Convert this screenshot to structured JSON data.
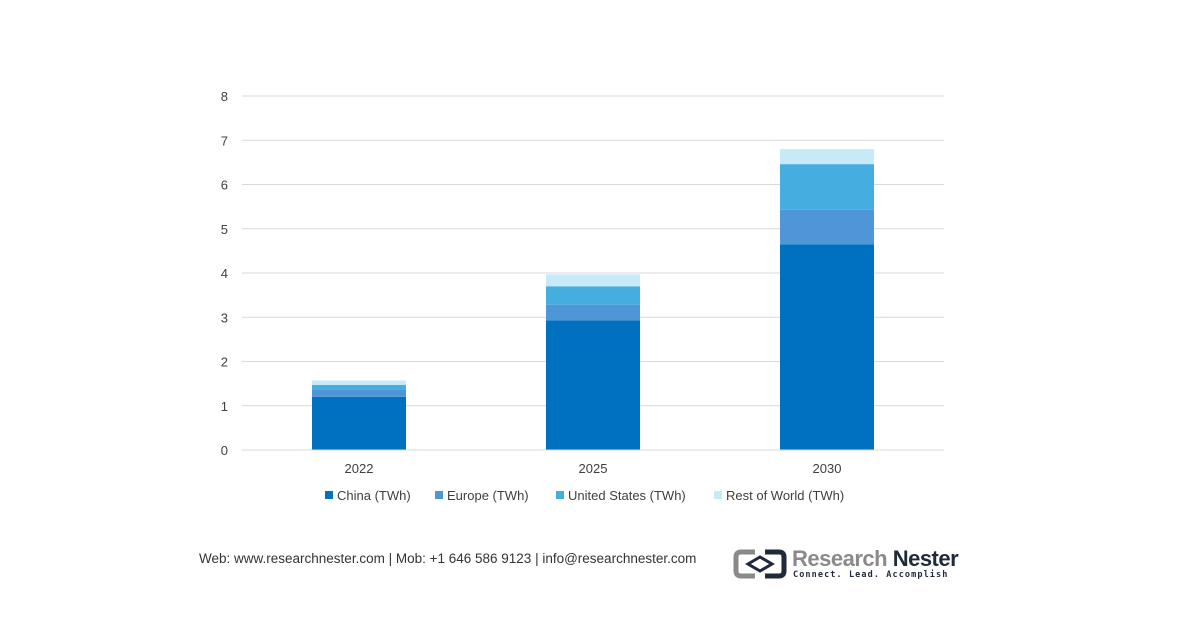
{
  "chart_data": {
    "type": "bar",
    "stacked": true,
    "categories": [
      "2022",
      "2025",
      "2030"
    ],
    "series": [
      {
        "name": "China (TWh)",
        "color": "#0070c0",
        "values": [
          1.2,
          2.93,
          4.65
        ]
      },
      {
        "name": "Europe (TWh)",
        "color": "#4f96d8",
        "values": [
          0.17,
          0.35,
          0.78
        ]
      },
      {
        "name": "United States (TWh)",
        "color": "#45ade0",
        "values": [
          0.1,
          0.42,
          1.03
        ]
      },
      {
        "name": "Rest of World (TWh)",
        "color": "#c6eaf7",
        "values": [
          0.1,
          0.27,
          0.34
        ]
      }
    ],
    "title": "",
    "xlabel": "",
    "ylabel": "",
    "ylim": [
      0,
      8
    ],
    "yticks": [
      "0",
      "1",
      "2",
      "3",
      "4",
      "5",
      "6",
      "7",
      "8"
    ],
    "grid": true,
    "legend_position": "bottom"
  },
  "footer": {
    "contact": "Web: www.researchnester.com | Mob: +1 646 586 9123 | info@researchnester.com"
  },
  "logo": {
    "name_part1": "Research",
    "name_part2": "Nester",
    "tagline": "Connect. Lead. Accomplish"
  }
}
